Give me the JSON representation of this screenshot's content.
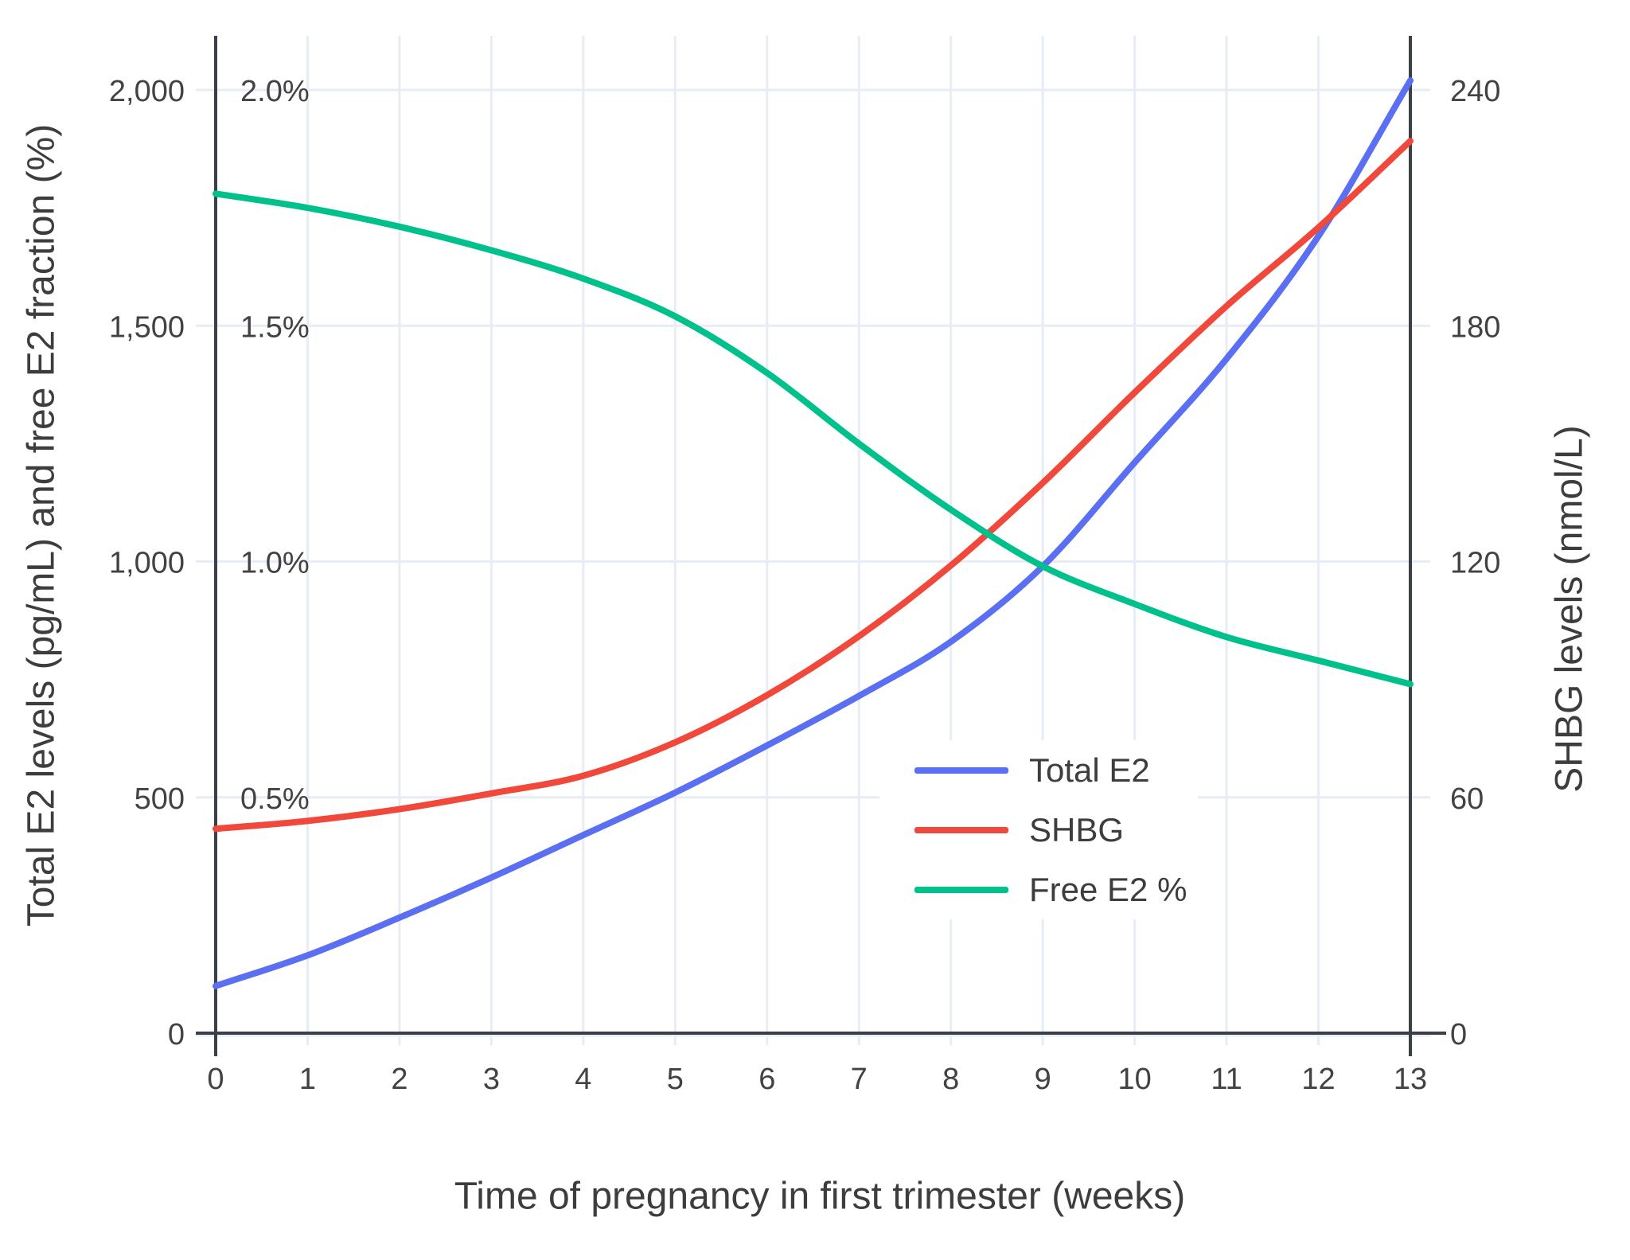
{
  "chart_data": {
    "type": "line",
    "x": [
      0,
      1,
      2,
      3,
      4,
      5,
      6,
      7,
      8,
      9,
      10,
      11,
      12,
      13
    ],
    "x_tick_labels": [
      "0",
      "1",
      "2",
      "3",
      "4",
      "5",
      "6",
      "7",
      "8",
      "9",
      "10",
      "11",
      "12",
      "13"
    ],
    "xlabel": "Time of pregnancy in first trimester (weeks)",
    "left_axis": {
      "label": "Total E2 levels (pg/mL) and free E2 fraction (%)",
      "tick_labels": [
        "0",
        "500",
        "1,000",
        "1,500",
        "2,000"
      ],
      "tick_values": [
        0,
        500,
        1000,
        1500,
        2000
      ],
      "range": [
        0,
        2115
      ]
    },
    "right_axis": {
      "label": "SHBG levels (nmol/L)",
      "tick_labels": [
        "0",
        "60",
        "120",
        "180",
        "240"
      ],
      "tick_values": [
        0,
        60,
        120,
        180,
        240
      ],
      "range": [
        0,
        253.8
      ]
    },
    "pct_overlay_labels": {
      "labels": [
        "0.5%",
        "1.0%",
        "1.5%",
        "2.0%"
      ],
      "at_left_values": [
        500,
        1000,
        1500,
        2000
      ]
    },
    "grid": true,
    "legend_position": "center-right",
    "series": [
      {
        "name": "Total E2",
        "color": "#5A6FF2",
        "axis": "left",
        "unit": "pg/mL",
        "values": [
          100,
          165,
          245,
          330,
          420,
          510,
          610,
          715,
          830,
          990,
          1210,
          1430,
          1690,
          2020
        ]
      },
      {
        "name": "SHBG",
        "color": "#F0483A",
        "axis": "right",
        "unit": "nmol/L",
        "values": [
          52,
          54,
          57,
          61,
          65.5,
          74,
          86,
          101,
          119,
          140,
          163,
          185,
          205,
          227
        ]
      },
      {
        "name": "Free E2 %",
        "color": "#00C08B",
        "axis": "percent_left",
        "unit": "%",
        "values": [
          1.78,
          1.75,
          1.71,
          1.66,
          1.6,
          1.52,
          1.4,
          1.25,
          1.11,
          0.99,
          0.91,
          0.84,
          0.79,
          0.74
        ]
      }
    ]
  },
  "colors": {
    "background": "#FFFFFF",
    "gridline": "#E7ECF5",
    "axis_frame": "#3B4046",
    "tick_text": "#424242",
    "title_text": "#3D3D3D"
  }
}
